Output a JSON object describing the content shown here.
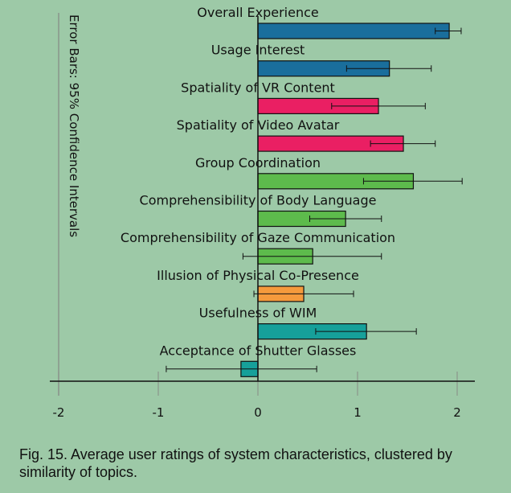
{
  "chart_data": {
    "type": "bar",
    "orientation": "horizontal",
    "title": "",
    "xlabel": "",
    "ylabel": "",
    "xlim": [
      -2.2,
      2.2
    ],
    "xticks": [
      -2,
      -1,
      0,
      1,
      2
    ],
    "xtick_labels": [
      "-2",
      "-1",
      "0",
      "1",
      "2"
    ],
    "annotation": "Error Bars: 95% Confidence Intervals",
    "categories": [
      "Overall Experience",
      "Usage Interest",
      "Spatiality of VR Content",
      "Spatiality of Video Avatar",
      "Group Coordination",
      "Comprehensibility of Body Language",
      "Comprehensibility of Gaze Communication",
      "Illusion of Physical Co-Presence",
      "Usefulness of WIM",
      "Acceptance of Shutter Glasses"
    ],
    "values": [
      1.92,
      1.32,
      1.21,
      1.46,
      1.56,
      0.88,
      0.55,
      0.46,
      1.09,
      -0.17
    ],
    "ci_low": [
      1.78,
      0.89,
      0.74,
      1.13,
      1.06,
      0.52,
      -0.15,
      -0.04,
      0.58,
      -0.92
    ],
    "ci_high": [
      2.04,
      1.74,
      1.68,
      1.78,
      2.05,
      1.24,
      1.24,
      0.96,
      1.59,
      0.59
    ],
    "colors": [
      "#1a6e9c",
      "#1a6e9c",
      "#ea1f63",
      "#ea1f63",
      "#5dbb4c",
      "#5dbb4c",
      "#5dbb4c",
      "#f59a3c",
      "#16a09a",
      "#16a09a"
    ]
  },
  "caption": "Fig. 15.  Average user ratings of system characteristics, clustered by similarity of topics."
}
